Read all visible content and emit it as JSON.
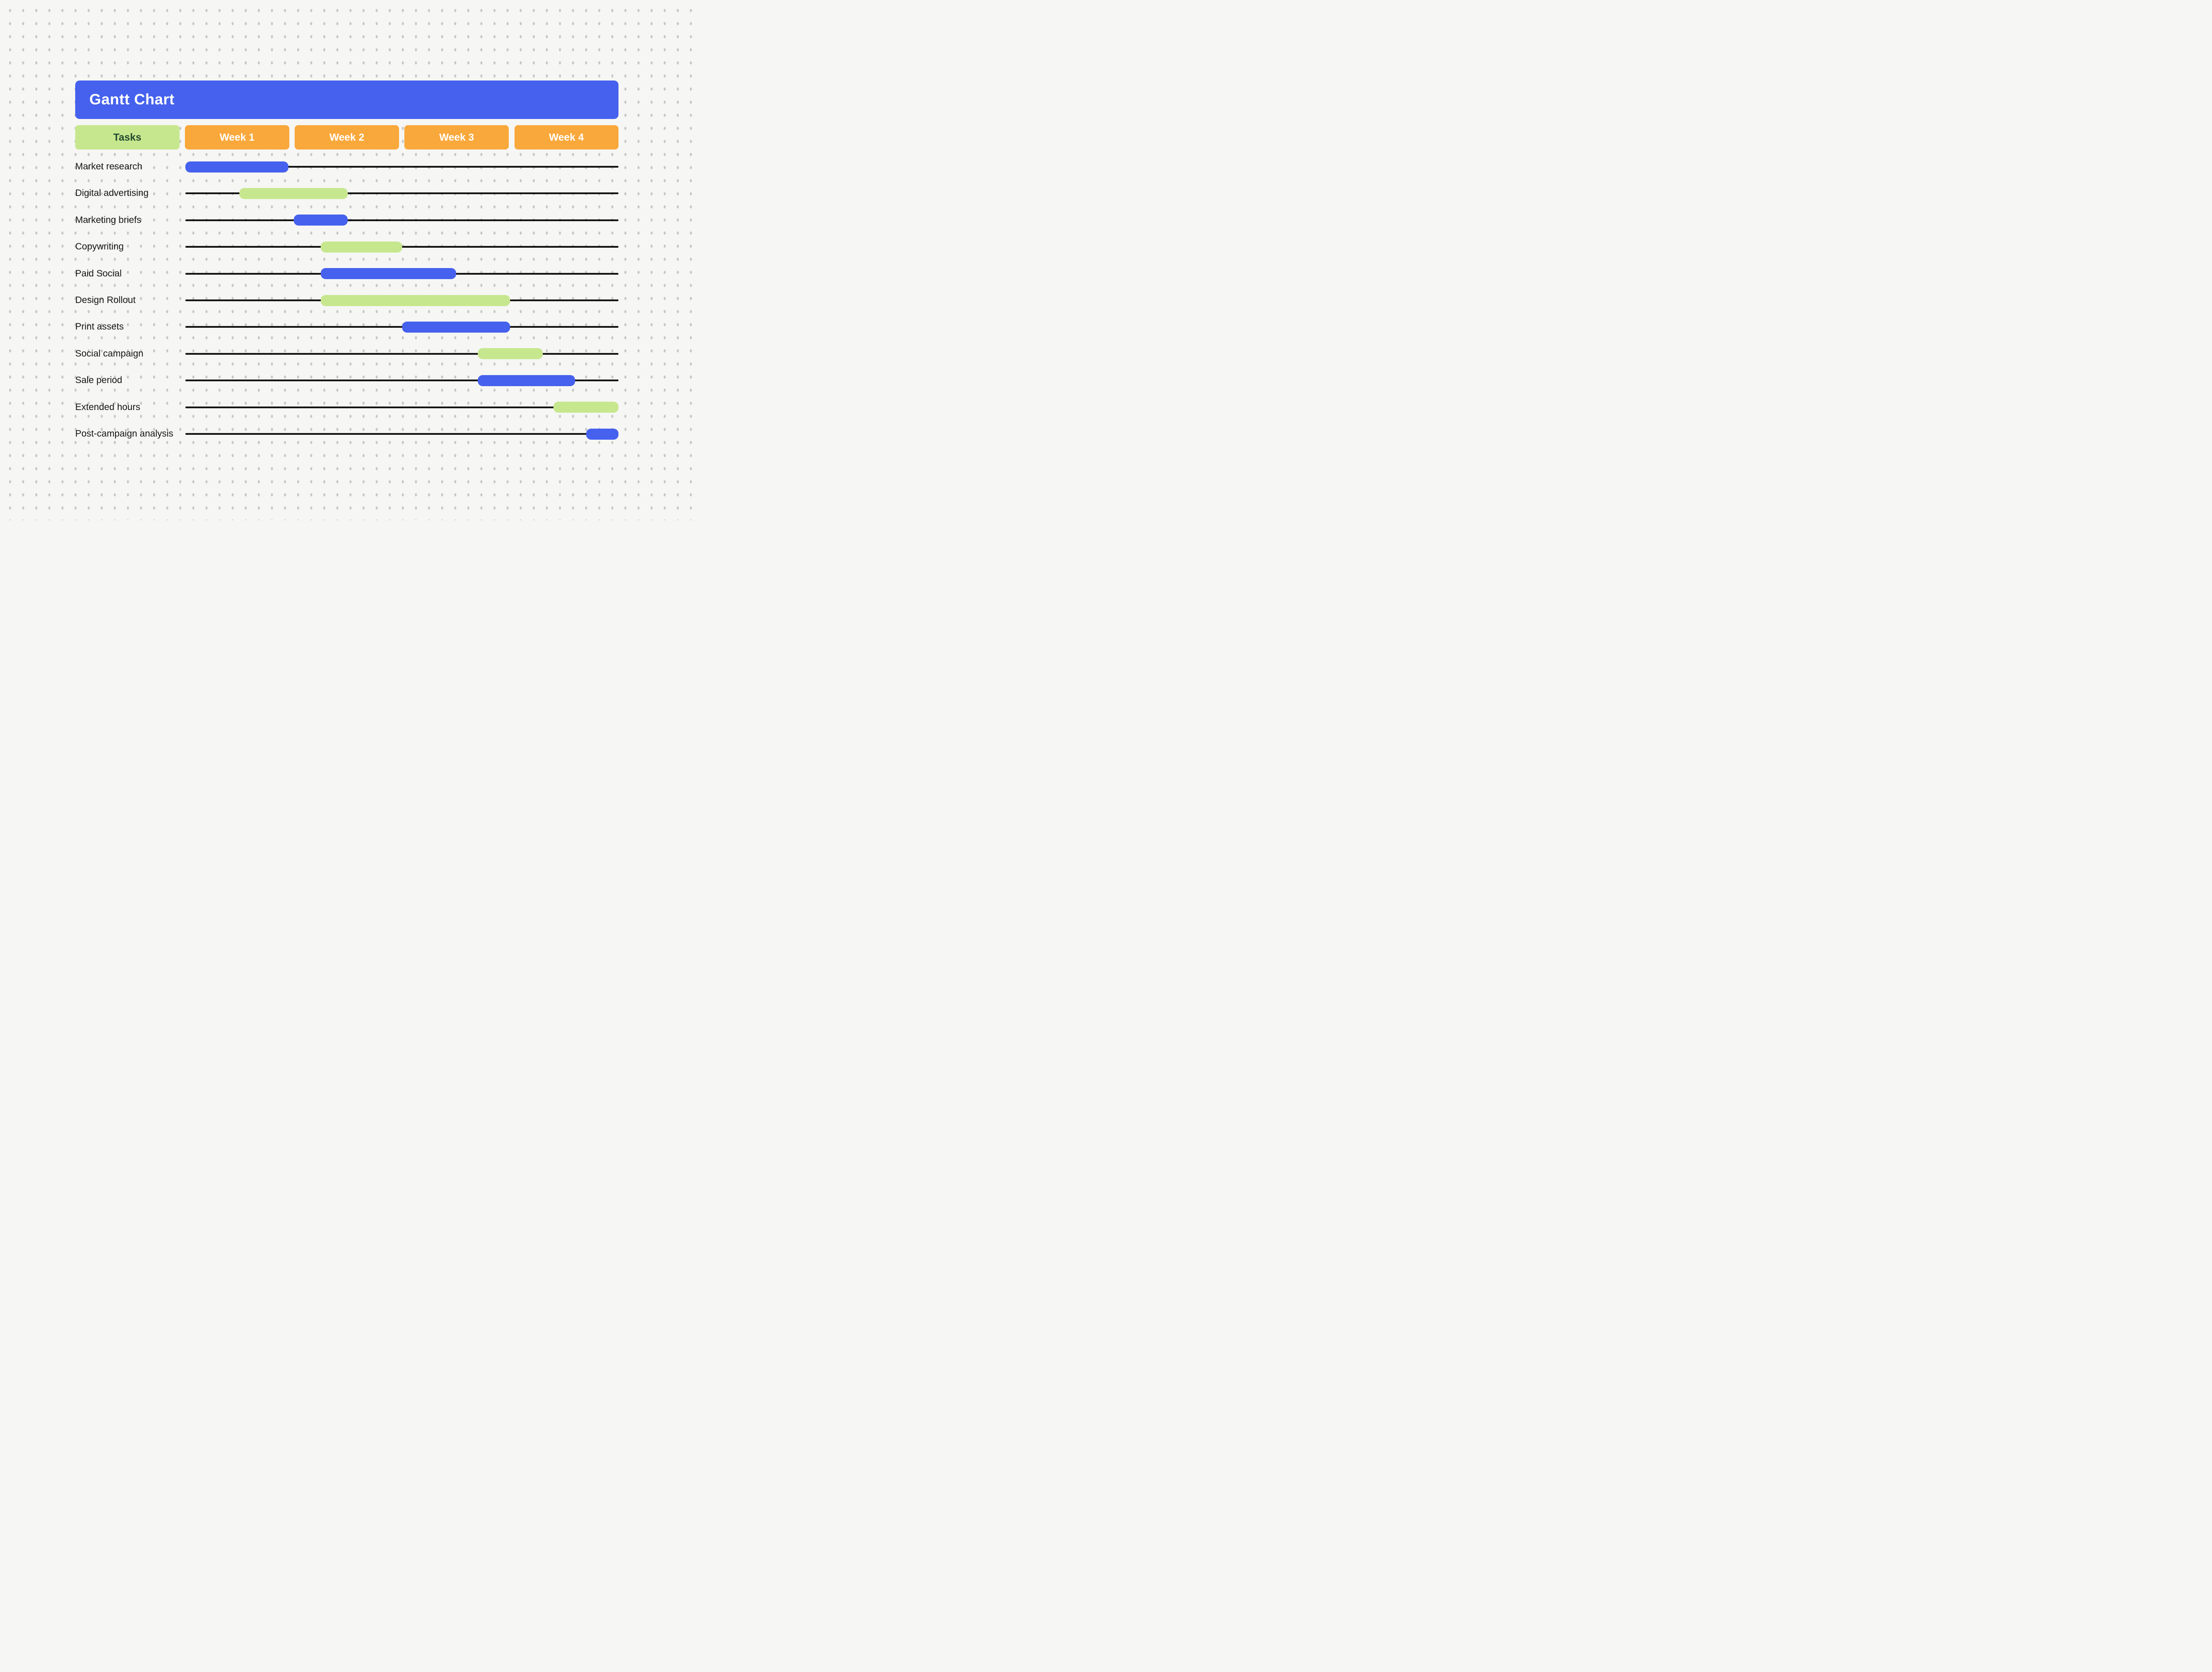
{
  "title": {
    "text": "Gantt Chart"
  },
  "columns": {
    "tasks_label": "Tasks",
    "weeks": [
      "Week 1",
      "Week 2",
      "Week 3",
      "Week 4"
    ]
  },
  "colors": {
    "blue": "#4561ED",
    "green": "#C7E78E",
    "orange": "#F9A83B",
    "tasks_text": "#234B2F",
    "title_text": "#FFFFFF",
    "label": "#141414",
    "line": "#161616",
    "bg": "#F6F6F4",
    "dot": "#C7C7C7"
  },
  "chart_data": {
    "type": "bar",
    "variant": "gantt",
    "title": "Gantt Chart",
    "x_axis": {
      "unit": "weeks",
      "min": 0,
      "max": 4,
      "tick_labels": [
        "Week 1",
        "Week 2",
        "Week 3",
        "Week 4"
      ]
    },
    "grid": "dotted-background",
    "legend": "none",
    "tasks": [
      {
        "name": "Market research",
        "start_week": 0.0,
        "end_week": 0.95,
        "color": "blue"
      },
      {
        "name": "Digital advertising",
        "start_week": 0.5,
        "end_week": 1.5,
        "color": "green"
      },
      {
        "name": "Marketing briefs",
        "start_week": 1.0,
        "end_week": 1.5,
        "color": "blue"
      },
      {
        "name": "Copywriting",
        "start_week": 1.25,
        "end_week": 2.0,
        "color": "green"
      },
      {
        "name": "Paid Social",
        "start_week": 1.25,
        "end_week": 2.5,
        "color": "blue"
      },
      {
        "name": "Design Rollout",
        "start_week": 1.25,
        "end_week": 3.0,
        "color": "green"
      },
      {
        "name": "Print assets",
        "start_week": 2.0,
        "end_week": 3.0,
        "color": "blue"
      },
      {
        "name": "Social campaign",
        "start_week": 2.7,
        "end_week": 3.3,
        "color": "green"
      },
      {
        "name": "Sale period",
        "start_week": 2.7,
        "end_week": 3.6,
        "color": "blue"
      },
      {
        "name": "Extended hours",
        "start_week": 3.4,
        "end_week": 4.0,
        "color": "green"
      },
      {
        "name": "Post-campaign analysis",
        "start_week": 3.7,
        "end_week": 4.0,
        "color": "blue"
      }
    ]
  }
}
